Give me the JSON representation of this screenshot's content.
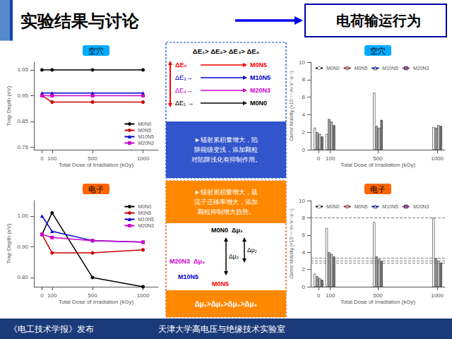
{
  "title": "实验结果与讨论",
  "subtitle": "电荷输运行为",
  "annotations": [
    {
      "text": "《电工技术学报》发布",
      "color": "white"
    },
    {
      "text": "天津大学高电压与绝缘技术实验室",
      "color": "white"
    },
    {
      "text": "ΔE₁> ΔE₂> ΔE₃> ΔE₄",
      "color": "black"
    },
    {
      "text": "ΔE₂",
      "color": "red"
    },
    {
      "text": "M0N5",
      "color": "red"
    },
    {
      "text": "ΔE₃→",
      "color": "#0000cc"
    },
    {
      "text": "M10N5",
      "color": "#0000cc"
    },
    {
      "text": "ΔE₄→",
      "color": "#cc00cc"
    },
    {
      "text": "M20N3",
      "color": "#cc00cc"
    },
    {
      "text": "ΔE₁ →",
      "color": "black"
    },
    {
      "text": "M0N0",
      "color": "black"
    },
    {
      "text": "►辐射累积量增大，陷\n阱能级变浅，添加颗粒\n对陷阱浅化有抑制作用。",
      "color": "white"
    },
    {
      "text": "►辐射累积量增大，载\n流子迁移率增大，添加\n颗粒抑制增大趋势。",
      "color": "white"
    },
    {
      "text": "M0N0  Δμ₁",
      "color": "black"
    },
    {
      "text": "M20N3  Δμ₄",
      "color": "#cc00cc"
    },
    {
      "text": "Δμ₃",
      "color": "black"
    },
    {
      "text": "Δμ₂",
      "color": "black"
    },
    {
      "text": "M10N5",
      "color": "#0000cc"
    },
    {
      "text": "M0N5",
      "color": "red"
    },
    {
      "text": "Δμ₁>Δμ₂>Δμ₃>Δμ₄",
      "color": "white"
    }
  ],
  "chart_data": [
    {
      "type": "line",
      "title": "空穴",
      "xlabel": "Total Dose of Irradiation (kGy)",
      "ylabel": "Trap Depth (eV)",
      "x": [
        0,
        100,
        500,
        1000
      ],
      "xlim": [
        -80,
        1150
      ],
      "xticks": [
        0,
        100,
        500,
        1000
      ],
      "ylim": [
        0.74,
        1.08
      ],
      "yticks": [
        0.75,
        0.85,
        0.95,
        1.05
      ],
      "grid": false,
      "legend": "lower right",
      "series": [
        {
          "name": "M0N0",
          "color": "black",
          "marker": "circle",
          "values": [
            1.05,
            1.05,
            1.05,
            1.05
          ]
        },
        {
          "name": "M0N5",
          "color": "#cc0000",
          "marker": "circle",
          "values": [
            0.95,
            0.925,
            0.925,
            0.925
          ]
        },
        {
          "name": "M10N5",
          "color": "#0000cc",
          "marker": "triangle",
          "values": [
            0.96,
            0.96,
            0.96,
            0.96
          ]
        },
        {
          "name": "M20N3",
          "color": "#cc00cc",
          "marker": "square",
          "values": [
            0.95,
            0.95,
            0.95,
            0.95
          ]
        }
      ]
    },
    {
      "type": "line",
      "title": "电子",
      "xlabel": "Total Dose of Irradiation (kGy)",
      "ylabel": "Trap Depth (eV)",
      "x": [
        0,
        100,
        500,
        1000
      ],
      "xlim": [
        -80,
        1150
      ],
      "xticks": [
        0,
        100,
        500,
        1000
      ],
      "ylim": [
        0.77,
        1.05
      ],
      "yticks": [
        {
          "value": 0.8,
          "label": "0.80"
        },
        {
          "value": 0.9,
          "label": "0.90"
        },
        {
          "value": 1.0,
          "label": "1.00"
        }
      ],
      "grid": false,
      "legend": "upper right",
      "series": [
        {
          "name": "M0N0",
          "color": "black",
          "marker": "circle",
          "values": [
            0.94,
            1.01,
            0.8,
            0.77
          ]
        },
        {
          "name": "M0N5",
          "color": "#cc0000",
          "marker": "circle",
          "values": [
            0.94,
            0.88,
            0.88,
            0.89
          ]
        },
        {
          "name": "M10N5",
          "color": "#0000cc",
          "marker": "triangle",
          "values": [
            1.0,
            0.95,
            0.92,
            0.915
          ]
        },
        {
          "name": "M20N3",
          "color": "#cc00cc",
          "marker": "square",
          "values": [
            0.94,
            0.93,
            0.92,
            0.915
          ]
        }
      ]
    },
    {
      "type": "bar",
      "title": "空穴",
      "xlabel": "Total Dose of Irradiation (kGy)",
      "ylabel": "Carrier Mobility (×10⁻¹⁴ m² V⁻¹s⁻¹)",
      "x": [
        0,
        100,
        500,
        1000
      ],
      "xlim": [
        -65,
        1065
      ],
      "xticks": [
        0,
        100,
        500,
        1000
      ],
      "ylim": [
        0,
        10
      ],
      "yticks": [
        0,
        2,
        4,
        6,
        8,
        10
      ],
      "grid": false,
      "legend": "upper left",
      "series": [
        {
          "name": "M0N0",
          "color": "white",
          "values": [
            2.5,
            1.8,
            6.5,
            2.6
          ]
        },
        {
          "name": "M0N5",
          "color": "#aaaaaa",
          "values": [
            2.0,
            3.5,
            2.7,
            2.5
          ]
        },
        {
          "name": "M10N5",
          "color": "#cccccc",
          "values": [
            1.8,
            3.2,
            2.5,
            2.8
          ]
        },
        {
          "name": "M20N3",
          "color": "#777777",
          "values": [
            1.5,
            2.8,
            3.4,
            2.7
          ]
        }
      ]
    },
    {
      "type": "bar",
      "title": "电子",
      "xlabel": "Total Dose of Irradiation (kGy)",
      "ylabel": "Carrier Mobility (×10⁻¹⁴ m² V⁻¹s⁻¹)",
      "x": [
        0,
        100,
        500,
        1000
      ],
      "xlim": [
        -65,
        1065
      ],
      "xticks": [
        0,
        100,
        500,
        1000
      ],
      "ylim": [
        0,
        10
      ],
      "yticks": [
        0,
        2,
        4,
        6,
        8,
        10
      ],
      "grid": false,
      "legend": "upper left",
      "hlines": [
        8.0,
        3.3,
        3.0,
        2.8
      ],
      "series": [
        {
          "name": "M0N0",
          "color": "white",
          "values": [
            1.5,
            6.8,
            7.5,
            8.0
          ]
        },
        {
          "name": "M0N5",
          "color": "#aaaaaa",
          "values": [
            1.2,
            4.0,
            3.5,
            3.3
          ]
        },
        {
          "name": "M10N5",
          "color": "#cccccc",
          "values": [
            1.0,
            3.8,
            3.2,
            3.0
          ]
        },
        {
          "name": "M20N3",
          "color": "#777777",
          "values": [
            0.8,
            3.5,
            3.0,
            2.8
          ]
        }
      ]
    }
  ]
}
